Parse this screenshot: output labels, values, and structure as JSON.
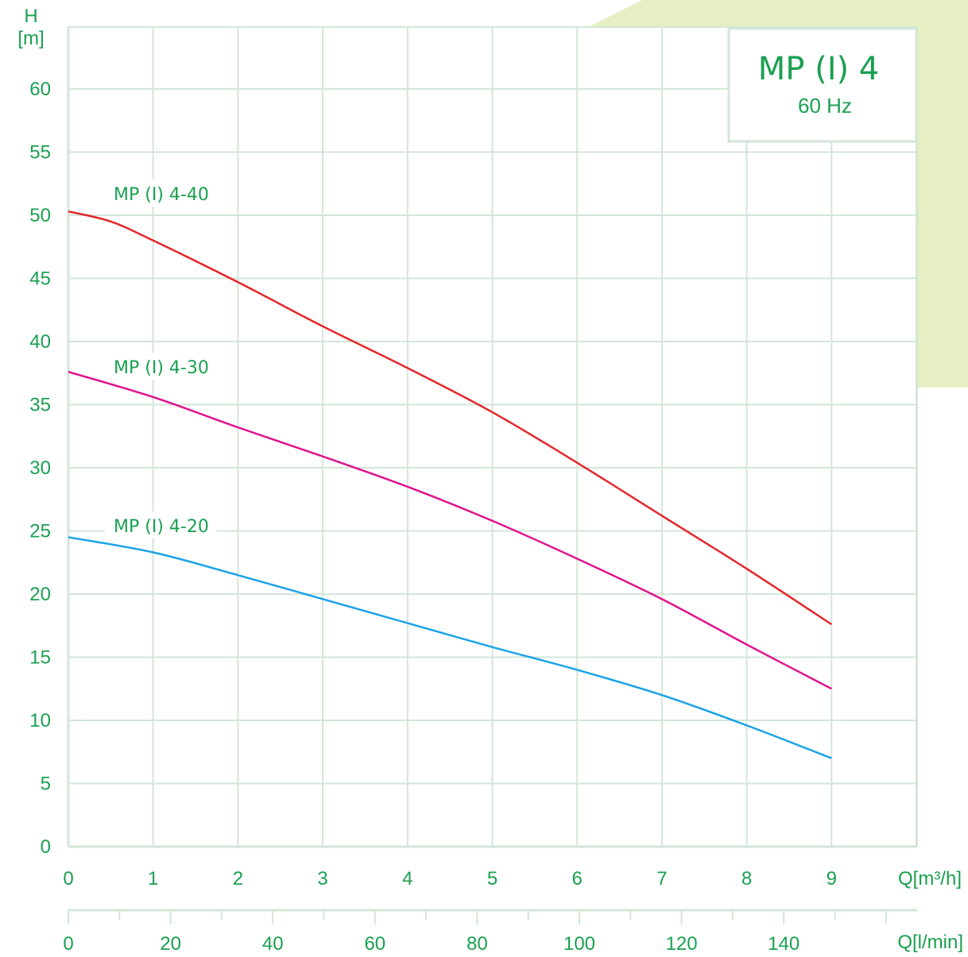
{
  "colors": {
    "text": "#1aa050",
    "grid": "#d3e6d8",
    "accent_bg": "#e6efc4",
    "series_4_40": "#e3272b",
    "series_4_30": "#e0138c",
    "series_4_20": "#1aa3e8"
  },
  "title": {
    "main": "MP (I) 4",
    "sub": "60 Hz"
  },
  "axes": {
    "y_label_top": "H",
    "y_label_unit": "[m]",
    "x1_label": "Q[m³/h]",
    "x2_label": "Q[l/min]",
    "y_ticks": [
      "0",
      "5",
      "10",
      "15",
      "20",
      "25",
      "30",
      "35",
      "40",
      "45",
      "50",
      "55",
      "60"
    ],
    "x1_ticks": [
      "0",
      "1",
      "2",
      "3",
      "4",
      "5",
      "6",
      "7",
      "8",
      "9"
    ],
    "x2_ticks": [
      "0",
      "20",
      "40",
      "60",
      "80",
      "100",
      "120",
      "140"
    ]
  },
  "chart_data": {
    "type": "line",
    "title": "MP (I) 4",
    "subtitle": "60 Hz",
    "xlabel": "Q[m³/h]",
    "x2label": "Q[l/min]",
    "ylabel": "H [m]",
    "xlim": [
      0,
      10
    ],
    "ylim": [
      0,
      62
    ],
    "grid": true,
    "series": [
      {
        "name": "MP (I) 4-40",
        "color": "#e3272b",
        "x": [
          0,
          0.5,
          1,
          2,
          3,
          4,
          5,
          6,
          7,
          8,
          9
        ],
        "y": [
          50.3,
          49.5,
          48.0,
          44.7,
          41.2,
          37.9,
          34.4,
          30.4,
          26.2,
          22.0,
          17.6
        ]
      },
      {
        "name": "MP (I) 4-30",
        "color": "#e0138c",
        "x": [
          0,
          1,
          2,
          3,
          4,
          5,
          6,
          7,
          8,
          9
        ],
        "y": [
          37.6,
          35.6,
          33.2,
          30.9,
          28.5,
          25.8,
          22.8,
          19.6,
          16.0,
          12.5
        ]
      },
      {
        "name": "MP (I) 4-20",
        "color": "#1aa3e8",
        "x": [
          0,
          1,
          2,
          3,
          4,
          5,
          6,
          7,
          8,
          9
        ],
        "y": [
          24.5,
          23.3,
          21.5,
          19.6,
          17.7,
          15.8,
          14.0,
          12.0,
          9.6,
          7.0
        ]
      }
    ]
  }
}
